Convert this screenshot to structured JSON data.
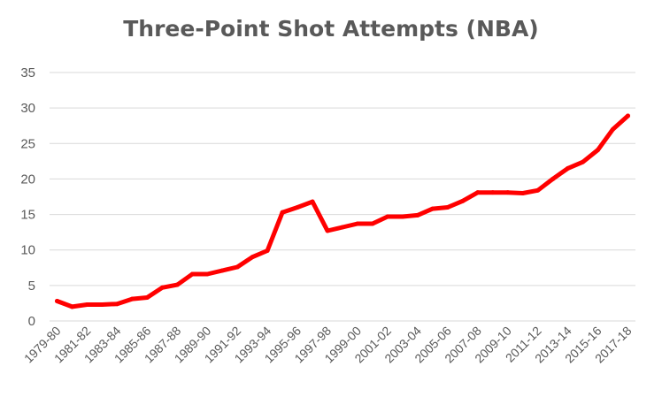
{
  "chart_data": {
    "type": "line",
    "title": "Three-Point Shot Attempts (NBA)",
    "xlabel": "",
    "ylabel": "",
    "ylim": [
      0,
      35
    ],
    "yticks": [
      "0",
      "5",
      "10",
      "15",
      "20",
      "25",
      "30",
      "35"
    ],
    "grid": true,
    "legend": "none",
    "line_color": "#ff0000",
    "categories": [
      "1979-80",
      "1980-81",
      "1981-82",
      "1982-83",
      "1983-84",
      "1984-85",
      "1985-86",
      "1986-87",
      "1987-88",
      "1988-89",
      "1989-90",
      "1990-91",
      "1991-92",
      "1992-93",
      "1993-94",
      "1994-95",
      "1995-96",
      "1996-97",
      "1997-98",
      "1998-99",
      "1999-00",
      "2000-01",
      "2001-02",
      "2002-03",
      "2003-04",
      "2004-05",
      "2005-06",
      "2006-07",
      "2007-08",
      "2008-09",
      "2009-10",
      "2010-11",
      "2011-12",
      "2012-13",
      "2013-14",
      "2014-15",
      "2015-16",
      "2016-17",
      "2017-18"
    ],
    "tick_labels": [
      "1979-80",
      "1981-82",
      "1983-84",
      "1985-86",
      "1987-88",
      "1989-90",
      "1991-92",
      "1993-94",
      "1995-96",
      "1997-98",
      "1999-00",
      "2001-02",
      "2003-04",
      "2005-06",
      "2007-08",
      "2009-10",
      "2011-12",
      "2013-14",
      "2015-16",
      "2017-18"
    ],
    "values": [
      2.8,
      2.0,
      2.3,
      2.3,
      2.4,
      3.1,
      3.3,
      4.7,
      5.1,
      6.6,
      6.6,
      7.1,
      7.6,
      9.0,
      9.9,
      15.3,
      16.0,
      16.8,
      12.7,
      13.2,
      13.7,
      13.7,
      14.7,
      14.7,
      14.9,
      15.8,
      16.0,
      16.9,
      18.1,
      18.1,
      18.1,
      18.0,
      18.4,
      20.0,
      21.5,
      22.4,
      24.1,
      27.0,
      28.9
    ]
  }
}
